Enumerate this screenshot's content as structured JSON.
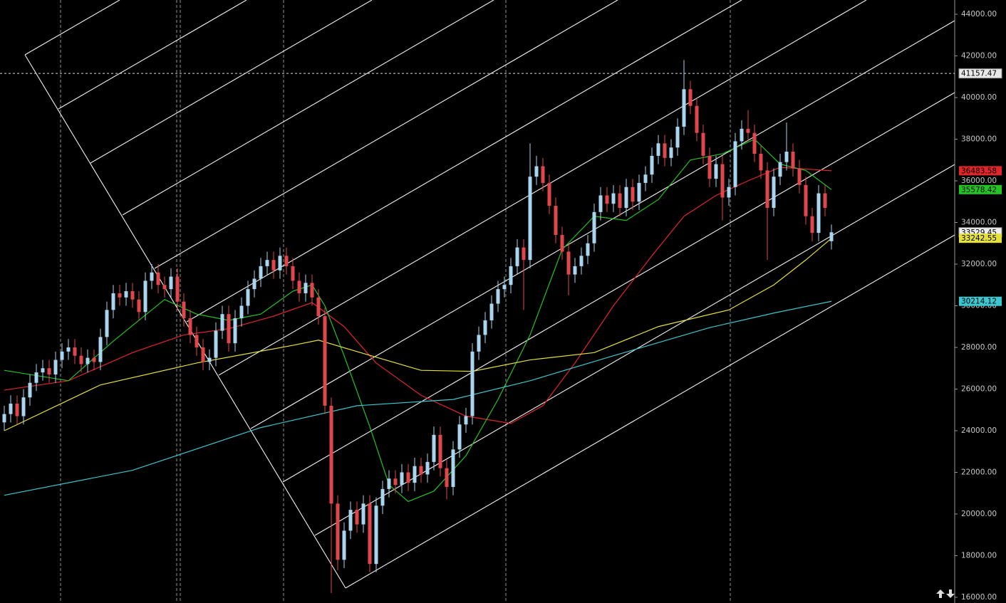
{
  "chart_data": {
    "type": "candlestick",
    "up_color": "#a9d6ee",
    "down_color": "#e0474c",
    "ylim": [
      15726,
      44684
    ],
    "yticks": [
      {
        "value": 16000,
        "label": "16000.00"
      },
      {
        "value": 18000,
        "label": "18000.00"
      },
      {
        "value": 20000,
        "label": "20000.00"
      },
      {
        "value": 22000,
        "label": "22000.00"
      },
      {
        "value": 24000,
        "label": "24000.00"
      },
      {
        "value": 26000,
        "label": "26000.00"
      },
      {
        "value": 28000,
        "label": "28000.00"
      },
      {
        "value": 30000,
        "label": "30000.00"
      },
      {
        "value": 32000,
        "label": "32000.00"
      },
      {
        "value": 34000,
        "label": "34000.00"
      },
      {
        "value": 36000,
        "label": "36000.00"
      },
      {
        "value": 38000,
        "label": "38000.00"
      },
      {
        "value": 40000,
        "label": "40000.00"
      },
      {
        "value": 42000,
        "label": "42000.00"
      },
      {
        "value": 44000,
        "label": "44000.00"
      }
    ],
    "crosshair": 41157.47,
    "open": [
      24400,
      24800,
      25300,
      24700,
      25600,
      26300,
      26800,
      27000,
      26700,
      27400,
      27800,
      28000,
      27600,
      27200,
      27500,
      27300,
      28500,
      29800,
      30600,
      30400,
      30700,
      30300,
      29700,
      31200,
      31600,
      31000,
      30800,
      31400,
      30200,
      29400,
      28600,
      28000,
      27300,
      27500,
      28800,
      29600,
      28200,
      29400,
      30000,
      30800,
      31300,
      31900,
      32200,
      31700,
      32400,
      31900,
      31200,
      30600,
      31100,
      30400,
      29500,
      25200,
      20500,
      17800,
      19200,
      20200,
      19500,
      20500,
      17600,
      20400,
      21200,
      21700,
      21400,
      22000,
      21500,
      22300,
      21900,
      22500,
      23800,
      22200,
      21300,
      23100,
      24300,
      24700,
      27800,
      28600,
      29300,
      30100,
      30800,
      31000,
      31900,
      32800,
      32200,
      36200,
      36700,
      35900,
      34800,
      33400,
      32600,
      31500,
      31900,
      32400,
      33000,
      34500,
      35300,
      34900,
      35400,
      34700,
      35700,
      35000,
      35900,
      36300,
      37200,
      37800,
      37100,
      37600,
      38600,
      40400,
      39600,
      38300,
      37200,
      36100,
      36800,
      35200,
      35700,
      37900,
      38500,
      38300,
      37300,
      36500,
      34700,
      36200,
      36900,
      37400,
      36600,
      35800,
      34300,
      33500,
      35400,
      33100
    ],
    "high": [
      25200,
      25700,
      25700,
      26000,
      26700,
      27200,
      27400,
      27400,
      27800,
      28200,
      28400,
      28400,
      28000,
      27900,
      27900,
      28900,
      30200,
      31000,
      31000,
      31100,
      31100,
      30700,
      31600,
      32000,
      32000,
      31400,
      31800,
      31800,
      30600,
      29800,
      29000,
      28400,
      27900,
      29200,
      30000,
      30000,
      29800,
      30400,
      31200,
      31700,
      32300,
      32600,
      32600,
      32800,
      32800,
      32300,
      31600,
      31500,
      31500,
      30800,
      29900,
      25600,
      20900,
      19600,
      20600,
      20600,
      20900,
      20900,
      20800,
      21600,
      22100,
      22100,
      22400,
      22400,
      22700,
      22700,
      22900,
      24200,
      24200,
      22600,
      23500,
      24700,
      25100,
      28200,
      29000,
      29700,
      30500,
      31200,
      31400,
      32300,
      33200,
      33200,
      37800,
      37200,
      37100,
      36300,
      35200,
      33800,
      33000,
      32300,
      32800,
      33400,
      34900,
      35700,
      35700,
      35800,
      35800,
      36100,
      36100,
      36300,
      36700,
      37600,
      38200,
      38200,
      38000,
      39000,
      41800,
      40800,
      40000,
      38700,
      37600,
      37200,
      37200,
      36100,
      38300,
      38900,
      39400,
      38700,
      37700,
      36900,
      36600,
      37300,
      38800,
      37800,
      37000,
      36200,
      34700,
      35800,
      35800,
      33900
    ],
    "low": [
      24000,
      24400,
      24300,
      24300,
      25200,
      25900,
      26400,
      26300,
      26300,
      27000,
      27400,
      27200,
      26800,
      26800,
      26900,
      26900,
      28100,
      29400,
      30000,
      30000,
      29900,
      29300,
      29300,
      30800,
      30600,
      30400,
      30400,
      29800,
      29000,
      28200,
      27600,
      26900,
      26900,
      27100,
      28400,
      27800,
      27800,
      29000,
      29600,
      30400,
      30900,
      31500,
      31300,
      31300,
      31500,
      30800,
      30200,
      30200,
      30000,
      29100,
      24800,
      16200,
      17300,
      17400,
      18800,
      19100,
      19100,
      17200,
      17200,
      20000,
      20800,
      21000,
      21000,
      21100,
      21100,
      21500,
      21500,
      22100,
      21800,
      20700,
      20900,
      22700,
      23900,
      24300,
      27400,
      28200,
      28900,
      29700,
      30400,
      30600,
      31500,
      29800,
      31800,
      35800,
      35500,
      34400,
      33000,
      32200,
      30500,
      31100,
      31500,
      32000,
      32600,
      34100,
      34500,
      34500,
      34300,
      34300,
      34600,
      34600,
      35500,
      35900,
      36800,
      36700,
      36700,
      37200,
      38200,
      39200,
      37900,
      36800,
      35700,
      35700,
      34100,
      34800,
      35300,
      37500,
      37900,
      36900,
      36100,
      32200,
      34300,
      35800,
      36500,
      36200,
      35400,
      33900,
      33100,
      33100,
      34300,
      32700
    ],
    "close": [
      24800,
      25300,
      24700,
      25600,
      26300,
      26800,
      27000,
      26700,
      27400,
      27800,
      28000,
      27600,
      27200,
      27500,
      27300,
      28500,
      29800,
      30600,
      30400,
      30700,
      30300,
      29700,
      31200,
      31600,
      31000,
      30800,
      31400,
      30200,
      29400,
      28600,
      28000,
      27300,
      27500,
      28800,
      29600,
      28200,
      29400,
      30000,
      30800,
      31300,
      31900,
      32200,
      31700,
      32400,
      31900,
      31200,
      30600,
      31100,
      30400,
      29500,
      25200,
      20500,
      17800,
      19200,
      20200,
      19500,
      20500,
      17600,
      20400,
      21200,
      21700,
      21400,
      22000,
      21500,
      22300,
      21900,
      22500,
      23800,
      22200,
      21300,
      23100,
      24300,
      24700,
      27800,
      28600,
      29300,
      30100,
      30800,
      31000,
      31900,
      32800,
      32200,
      36200,
      36700,
      35900,
      34800,
      33400,
      32600,
      31500,
      31900,
      32400,
      33000,
      34500,
      35300,
      34900,
      35400,
      34700,
      35700,
      35000,
      35900,
      36300,
      37200,
      37800,
      37100,
      37600,
      38600,
      40400,
      39600,
      38300,
      37200,
      36100,
      36800,
      35200,
      35700,
      37900,
      38500,
      38300,
      37300,
      36500,
      34700,
      36200,
      36900,
      37400,
      36600,
      35800,
      34300,
      33500,
      35400,
      34700,
      33529.45
    ],
    "series": [
      {
        "color": "#e0262b",
        "x": [
          0,
          10,
          20,
          28,
          35,
          42,
          48,
          53,
          58,
          65,
          72,
          79,
          84,
          89,
          95,
          101,
          106,
          111,
          116,
          121,
          129
        ],
        "values": [
          25950,
          26400,
          27750,
          28600,
          28900,
          29500,
          30150,
          29000,
          27250,
          25700,
          24700,
          24350,
          25200,
          27250,
          30000,
          32400,
          34300,
          35300,
          36000,
          36650,
          36483.58
        ],
        "last_value": 36483.58
      },
      {
        "color": "#22c422",
        "x": [
          0,
          10,
          17,
          25,
          30,
          35,
          40,
          45,
          48,
          50,
          53,
          57,
          60,
          63,
          67,
          72,
          77,
          82,
          87,
          92,
          97,
          102,
          107,
          112,
          117,
          121,
          125,
          129
        ],
        "values": [
          26900,
          26400,
          28300,
          30300,
          29600,
          29300,
          29600,
          30700,
          31000,
          30000,
          27600,
          24200,
          21400,
          20600,
          21100,
          22800,
          25500,
          28600,
          32700,
          34300,
          34100,
          35100,
          37000,
          37300,
          38000,
          36800,
          36500,
          35578.42
        ],
        "last_value": 35578.42
      },
      {
        "color": "#e6e03a",
        "x": [
          0,
          15,
          30,
          45,
          49,
          55,
          65,
          73,
          82,
          92,
          102,
          113,
          120,
          125,
          129
        ],
        "values": [
          24000,
          26200,
          27250,
          28100,
          28350,
          27800,
          26900,
          26850,
          27400,
          27750,
          29000,
          29800,
          31000,
          32200,
          33242.55
        ],
        "last_value": 33242.55
      },
      {
        "color": "#3cc6cf",
        "x": [
          0,
          20,
          40,
          55,
          70,
          82,
          95,
          110,
          120,
          129
        ],
        "values": [
          20900,
          22100,
          24150,
          25200,
          25500,
          26400,
          27600,
          28950,
          29650,
          30214.12
        ],
        "last_value": 30214.12
      }
    ]
  }
}
